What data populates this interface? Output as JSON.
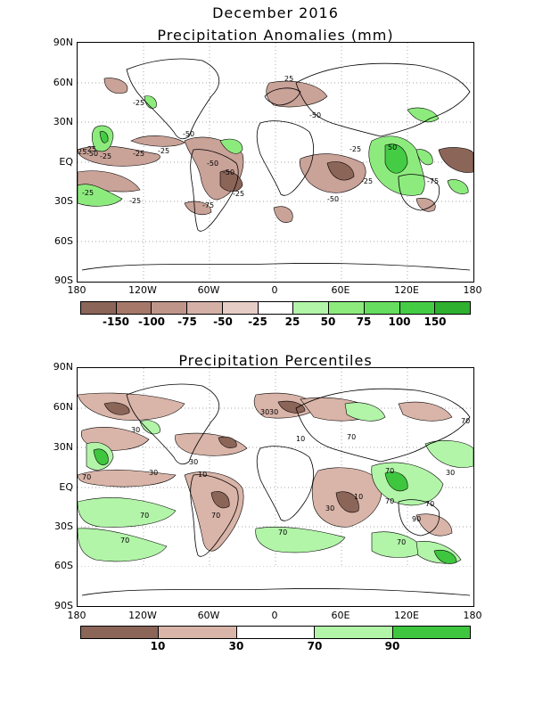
{
  "header": {
    "title": "December 2016"
  },
  "panel1": {
    "subtitle": "Precipitation Anomalies (mm)",
    "lat_labels": [
      "90N",
      "60N",
      "30N",
      "EQ",
      "30S",
      "60S",
      "90S"
    ],
    "lon_labels": [
      "180",
      "120W",
      "60W",
      "0",
      "60E",
      "120E",
      "180"
    ],
    "contour_labels": [
      "-25",
      "-25",
      "-50",
      "-25",
      "-25",
      "-50",
      "-25",
      "-50",
      "-25",
      "-50",
      "-75",
      "50",
      "-25",
      "25",
      "-25",
      "-50",
      "-75",
      "-25",
      "-50",
      "25",
      "-25"
    ],
    "colorbar": {
      "colors": [
        "#8b6558",
        "#a5786a",
        "#bf958a",
        "#d4b0a6",
        "#e6cdc6",
        "#ffffff",
        "#b2f5a8",
        "#8deb7e",
        "#66dd5e",
        "#45cc45",
        "#2fb02f"
      ],
      "labels": [
        "-150",
        "-100",
        "-75",
        "-50",
        "-25",
        "25",
        "50",
        "75",
        "100",
        "150"
      ]
    }
  },
  "panel2": {
    "subtitle": "Precipitation Percentiles",
    "lat_labels": [
      "90N",
      "60N",
      "30N",
      "EQ",
      "30S",
      "60S",
      "90S"
    ],
    "lon_labels": [
      "180",
      "120W",
      "60W",
      "0",
      "60E",
      "120E",
      "180"
    ],
    "contour_labels": [
      "70",
      "30",
      "30",
      "30",
      "70",
      "10",
      "30",
      "70",
      "70",
      "70",
      "30",
      "10",
      "70",
      "30",
      "10",
      "70",
      "90",
      "70",
      "70",
      "70",
      "30",
      "70"
    ],
    "colorbar": {
      "colors": [
        "#8b6558",
        "#d9b4a8",
        "#ffffff",
        "#b2f5a8",
        "#3fc63f"
      ],
      "labels": [
        "10",
        "30",
        "70",
        "90"
      ]
    }
  }
}
